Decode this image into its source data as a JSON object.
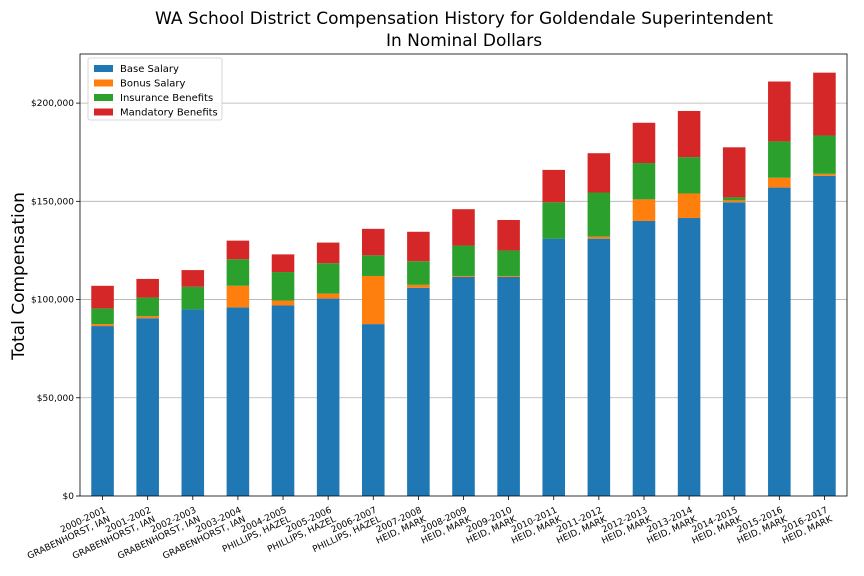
{
  "chart_data": {
    "type": "bar",
    "stacked": true,
    "title": "WA School District Compensation History for Goldendale Superintendent",
    "subtitle": "In Nominal Dollars",
    "xlabel": "",
    "ylabel": "Total Compensation",
    "ylim": [
      0,
      225000
    ],
    "yticks": [
      0,
      50000,
      100000,
      150000,
      200000
    ],
    "ytick_labels": [
      "$0",
      "$50,000",
      "$100,000",
      "$150,000",
      "$200,000"
    ],
    "grid": "horizontal",
    "legend_position": "top-left",
    "categories": [
      [
        "2000-2001",
        "GRABENHORST, IAN"
      ],
      [
        "2001-2002",
        "GRABENHORST, IAN"
      ],
      [
        "2002-2003",
        "GRABENHORST, IAN"
      ],
      [
        "2003-2004",
        "GRABENHORST, IAN"
      ],
      [
        "2004-2005",
        "PHILLIPS, HAZEL"
      ],
      [
        "2005-2006",
        "PHILLIPS, HAZEL"
      ],
      [
        "2006-2007",
        "PHILLIPS, HAZEL"
      ],
      [
        "2007-2008",
        "HEID, MARK"
      ],
      [
        "2008-2009",
        "HEID, MARK"
      ],
      [
        "2009-2010",
        "HEID, MARK"
      ],
      [
        "2010-2011",
        "HEID, MARK"
      ],
      [
        "2011-2012",
        "HEID, MARK"
      ],
      [
        "2012-2013",
        "HEID, MARK"
      ],
      [
        "2013-2014",
        "HEID, MARK"
      ],
      [
        "2014-2015",
        "HEID, MARK"
      ],
      [
        "2015-2016",
        "HEID, MARK"
      ],
      [
        "2016-2017",
        "HEID, MARK"
      ]
    ],
    "series": [
      {
        "name": "Base Salary",
        "color": "#1f77b4",
        "values": [
          86500,
          90500,
          95000,
          96000,
          97000,
          100500,
          87500,
          106000,
          111500,
          111500,
          131000,
          131000,
          140000,
          141500,
          149500,
          157000,
          163000
        ]
      },
      {
        "name": "Bonus Salary",
        "color": "#ff7f0e",
        "values": [
          1000,
          1000,
          0,
          11000,
          2500,
          2500,
          24500,
          1500,
          500,
          500,
          0,
          1000,
          11000,
          12500,
          1000,
          5000,
          1000
        ]
      },
      {
        "name": "Insurance Benefits",
        "color": "#2ca02c",
        "values": [
          8000,
          9500,
          11500,
          13500,
          14500,
          15500,
          10500,
          12000,
          15500,
          13000,
          18500,
          22500,
          18500,
          18500,
          1500,
          18500,
          19500
        ]
      },
      {
        "name": "Mandatory Benefits",
        "color": "#d62728",
        "values": [
          11500,
          9500,
          8500,
          9500,
          9000,
          10500,
          13500,
          15000,
          18500,
          15500,
          16500,
          20000,
          20500,
          23500,
          25500,
          30500,
          32000
        ]
      }
    ]
  }
}
